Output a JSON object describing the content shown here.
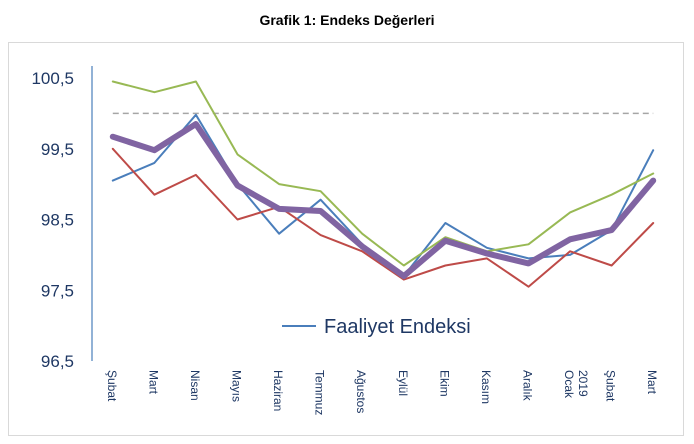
{
  "chart_data": {
    "type": "line",
    "title": "Grafik 1: Endeks Değerleri",
    "categories": [
      "Şubat",
      "Mart",
      "Nisan",
      "Mayıs",
      "Haziran",
      "Temmuz",
      "Ağustos",
      "Eylül",
      "Ekim",
      "Kasım",
      "Aralık",
      "2019 Ocak",
      "Şubat",
      "Mart"
    ],
    "ylim": [
      96.5,
      100.5
    ],
    "yticks": [
      "100,5",
      "99,5",
      "98,5",
      "97,5",
      "96,5"
    ],
    "reference_line": 100.0,
    "legend": {
      "label": "Faaliyet Endeksi",
      "position": "center-bottom"
    },
    "series": [
      {
        "name": "Faaliyet Endeksi",
        "color": "#4a7ebb",
        "width": 2,
        "values": [
          99.05,
          99.3,
          99.98,
          99.0,
          98.3,
          98.78,
          98.15,
          97.7,
          98.45,
          98.1,
          97.95,
          98.0,
          98.35,
          99.48
        ]
      },
      {
        "name": "",
        "color": "#be4b48",
        "width": 2,
        "values": [
          99.5,
          98.85,
          99.13,
          98.5,
          98.68,
          98.28,
          98.05,
          97.65,
          97.85,
          97.95,
          97.55,
          98.05,
          97.85,
          98.45
        ]
      },
      {
        "name": "",
        "color": "#98b954",
        "width": 2,
        "values": [
          100.45,
          100.3,
          100.45,
          99.42,
          99.0,
          98.9,
          98.3,
          97.85,
          98.25,
          98.05,
          98.15,
          98.6,
          98.85,
          99.15
        ]
      },
      {
        "name": "",
        "color": "#8064a2",
        "width": 6,
        "values": [
          99.67,
          99.48,
          99.85,
          98.98,
          98.65,
          98.62,
          98.12,
          97.7,
          98.2,
          98.02,
          97.88,
          98.22,
          98.35,
          99.05
        ]
      }
    ],
    "colors": {
      "axis": "#4a7ebb",
      "text": "#1f3864",
      "reference": "#a6a6a6"
    }
  }
}
